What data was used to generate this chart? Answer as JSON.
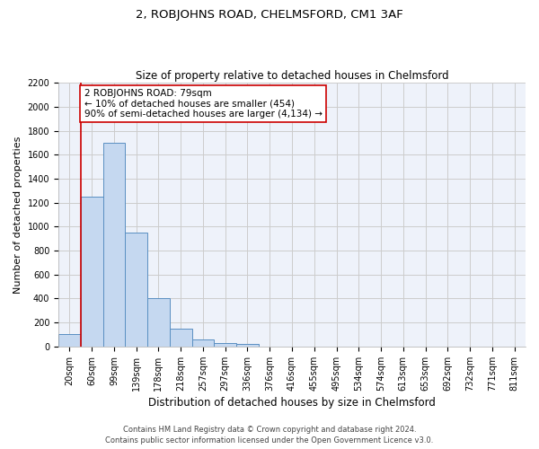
{
  "title_line1": "2, ROBJOHNS ROAD, CHELMSFORD, CM1 3AF",
  "title_line2": "Size of property relative to detached houses in Chelmsford",
  "xlabel": "Distribution of detached houses by size in Chelmsford",
  "ylabel": "Number of detached properties",
  "footer_line1": "Contains HM Land Registry data © Crown copyright and database right 2024.",
  "footer_line2": "Contains public sector information licensed under the Open Government Licence v3.0.",
  "bar_labels": [
    "20sqm",
    "60sqm",
    "99sqm",
    "139sqm",
    "178sqm",
    "218sqm",
    "257sqm",
    "297sqm",
    "336sqm",
    "376sqm",
    "416sqm",
    "455sqm",
    "495sqm",
    "534sqm",
    "574sqm",
    "613sqm",
    "653sqm",
    "692sqm",
    "732sqm",
    "771sqm",
    "811sqm"
  ],
  "bar_values": [
    100,
    1250,
    1700,
    950,
    400,
    150,
    60,
    30,
    20,
    0,
    0,
    0,
    0,
    0,
    0,
    0,
    0,
    0,
    0,
    0,
    0
  ],
  "bar_color": "#c5d8f0",
  "bar_edge_color": "#5a8fc2",
  "annotation_text": "2 ROBJOHNS ROAD: 79sqm\n← 10% of detached houses are smaller (454)\n90% of semi-detached houses are larger (4,134) →",
  "vline_x": 0.5,
  "vline_color": "#cc0000",
  "annotation_box_color": "#ffffff",
  "annotation_box_edge_color": "#cc0000",
  "ylim": [
    0,
    2200
  ],
  "yticks": [
    0,
    200,
    400,
    600,
    800,
    1000,
    1200,
    1400,
    1600,
    1800,
    2000,
    2200
  ],
  "grid_color": "#cccccc",
  "bg_color": "#eef2fa",
  "title_fontsize": 9.5,
  "subtitle_fontsize": 8.5,
  "axis_label_fontsize": 8,
  "tick_fontsize": 7,
  "annotation_fontsize": 7.5,
  "footer_fontsize": 6
}
